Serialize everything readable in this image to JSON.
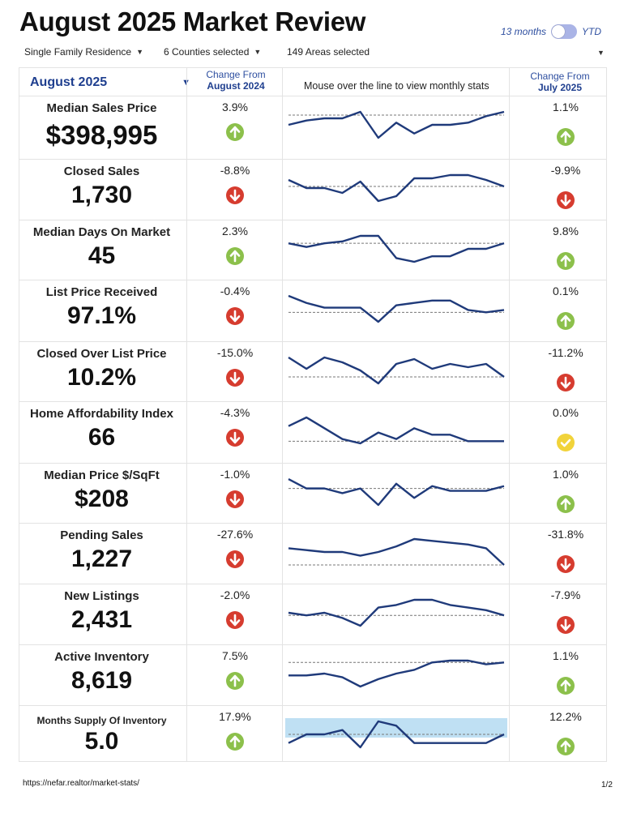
{
  "title": "August 2025 Market Review",
  "toggle": {
    "left_label": "13 months",
    "right_label": "YTD"
  },
  "filters": {
    "property_type": "Single Family Residence",
    "counties": "6 Counties selected",
    "areas": "149 Areas selected"
  },
  "header": {
    "month": "August 2025",
    "change_prev_year_line1": "Change From",
    "change_prev_year_line2": "August 2024",
    "mouse_hint": "Mouse over the line to view monthly stats",
    "change_prev_month_line1": "Change From",
    "change_prev_month_line2": "July 2025"
  },
  "colors": {
    "up": "#8cc04b",
    "down": "#d63c2f",
    "flat": "#f1d33a",
    "line": "#1f3a7a",
    "accent": "#1f3f8f"
  },
  "metrics": [
    {
      "label": "Median Sales Price",
      "value": "$398,995",
      "yoy": "3.9%",
      "yoy_dir": "up",
      "mom": "1.1%",
      "mom_dir": "up",
      "trend": [
        3,
        5,
        6,
        6,
        9,
        -3,
        4,
        -1,
        3,
        3,
        4,
        7,
        9
      ],
      "baseline": 7.5
    },
    {
      "label": "Closed Sales",
      "value": "1,730",
      "yoy": "-8.8%",
      "yoy_dir": "down",
      "mom": "-9.9%",
      "mom_dir": "down",
      "trend": [
        8,
        3,
        3,
        0,
        7,
        -5,
        -2,
        9,
        9,
        11,
        11,
        8,
        4
      ],
      "baseline": 4
    },
    {
      "label": "Median Days On Market",
      "value": "45",
      "yoy": "2.3%",
      "yoy_dir": "up",
      "mom": "9.8%",
      "mom_dir": "up",
      "trend": [
        5,
        3,
        5,
        6,
        9,
        9,
        -3,
        -5,
        -2,
        -2,
        2,
        2,
        5
      ],
      "baseline": 5
    },
    {
      "label": "List Price Received",
      "value": "97.1%",
      "yoy": "-0.4%",
      "yoy_dir": "down",
      "mom": "0.1%",
      "mom_dir": "up",
      "trend": [
        8,
        5,
        3,
        3,
        3,
        -3,
        4,
        5,
        6,
        6,
        2,
        1,
        2
      ],
      "baseline": 1
    },
    {
      "label": "Closed Over List Price",
      "value": "10.2%",
      "yoy": "-15.0%",
      "yoy_dir": "down",
      "mom": "-11.2%",
      "mom_dir": "down",
      "trend": [
        11,
        4,
        11,
        8,
        3,
        -5,
        7,
        10,
        4,
        7,
        5,
        7,
        -1
      ],
      "baseline": -1
    },
    {
      "label": "Home Affordability Index",
      "value": "66",
      "yoy": "-4.3%",
      "yoy_dir": "down",
      "mom": "0.0%",
      "mom_dir": "flat",
      "trend": [
        6,
        10,
        5,
        0,
        -2,
        3,
        0,
        5,
        2,
        2,
        -1,
        -1,
        -1
      ],
      "baseline": -1
    },
    {
      "label": "Median Price $/SqFt",
      "value": "$208",
      "yoy": "-1.0%",
      "yoy_dir": "down",
      "mom": "1.0%",
      "mom_dir": "up",
      "trend": [
        7,
        3,
        3,
        1,
        3,
        -4,
        5,
        -1,
        4,
        2,
        2,
        2,
        4
      ],
      "baseline": 3
    },
    {
      "label": "Pending Sales",
      "value": "1,227",
      "yoy": "-27.6%",
      "yoy_dir": "down",
      "mom": "-31.8%",
      "mom_dir": "down",
      "trend": [
        6,
        5,
        4,
        4,
        2,
        4,
        7,
        11,
        10,
        9,
        8,
        6,
        -3
      ],
      "baseline": -3
    },
    {
      "label": "New Listings",
      "value": "2,431",
      "yoy": "-2.0%",
      "yoy_dir": "down",
      "mom": "-7.9%",
      "mom_dir": "down",
      "trend": [
        4,
        3,
        4,
        2,
        -1,
        6,
        7,
        9,
        9,
        7,
        6,
        5,
        3
      ],
      "baseline": 3
    },
    {
      "label": "Active Inventory",
      "value": "8,619",
      "yoy": "7.5%",
      "yoy_dir": "up",
      "mom": "1.1%",
      "mom_dir": "up",
      "trend": [
        2,
        2,
        3,
        1,
        -4,
        0,
        3,
        5,
        9,
        10,
        10,
        8,
        9
      ],
      "baseline": 9
    },
    {
      "label": "Months Supply Of Inventory",
      "value": "5.0",
      "yoy": "17.9%",
      "yoy_dir": "up",
      "mom": "12.2%",
      "mom_dir": "up",
      "trend": [
        2,
        4,
        4,
        5,
        1,
        7,
        6,
        2,
        2,
        2,
        2,
        2,
        4
      ],
      "baseline": 4,
      "highlight_band": true
    }
  ],
  "footer": {
    "url": "https://nefar.realtor/market-stats/",
    "page": "1/2"
  }
}
